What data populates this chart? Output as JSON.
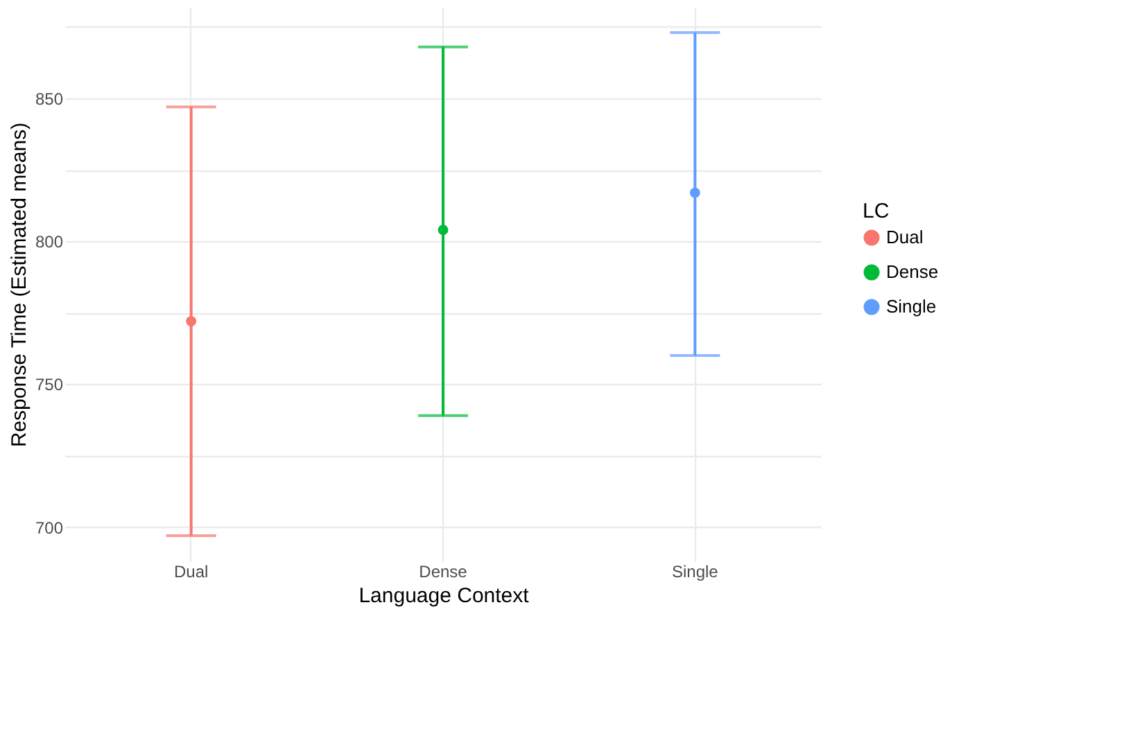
{
  "chart_data": {
    "type": "scatter",
    "xlabel": "Language Context",
    "ylabel": "Response Time (Estimated means)",
    "legend_title": "LC",
    "categories": [
      "Dual",
      "Dense",
      "Single"
    ],
    "series": [
      {
        "name": "Dual",
        "color": "#f8766d",
        "values": [
          772,
          null,
          null
        ],
        "errors": [
          [
            697,
            847
          ],
          null,
          null
        ]
      },
      {
        "name": "Dense",
        "color": "#00ba38",
        "values": [
          null,
          804,
          null
        ],
        "errors": [
          null,
          [
            739,
            868
          ],
          null
        ]
      },
      {
        "name": "Single",
        "color": "#619cff",
        "values": [
          null,
          null,
          817
        ],
        "errors": [
          null,
          null,
          [
            760,
            873
          ]
        ]
      }
    ],
    "ylim": [
      688,
      882
    ],
    "yticks": [
      700,
      {
        "value": 725,
        "label": null
      },
      750,
      {
        "value": 775,
        "label": null
      },
      800,
      {
        "value": 825,
        "label": null
      },
      850,
      {
        "value": 875,
        "label": null
      }
    ],
    "grid": true,
    "legend": "right",
    "marker": "circle"
  }
}
